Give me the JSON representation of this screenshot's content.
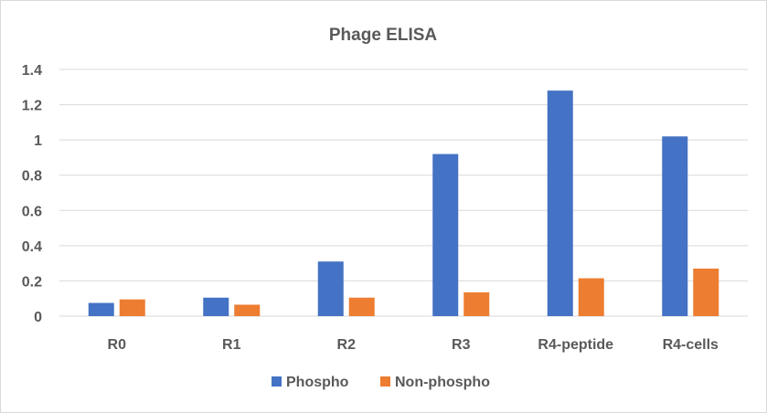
{
  "chart_data": {
    "type": "bar",
    "title": "Phage ELISA",
    "categories": [
      "R0",
      "R1",
      "R2",
      "R3",
      "R4-peptide",
      "R4-cells"
    ],
    "series": [
      {
        "name": "Phospho",
        "color": "#4472C4",
        "values": [
          0.075,
          0.105,
          0.31,
          0.92,
          1.28,
          1.02
        ]
      },
      {
        "name": "Non-phospho",
        "color": "#ED7D31",
        "values": [
          0.095,
          0.065,
          0.105,
          0.135,
          0.215,
          0.27
        ]
      }
    ],
    "yticks": [
      "0",
      "0.2",
      "0.4",
      "0.6",
      "0.8",
      "1",
      "1.2",
      "1.4"
    ],
    "ylim": [
      0,
      1.4
    ],
    "grid": true,
    "legend": "bottom"
  }
}
